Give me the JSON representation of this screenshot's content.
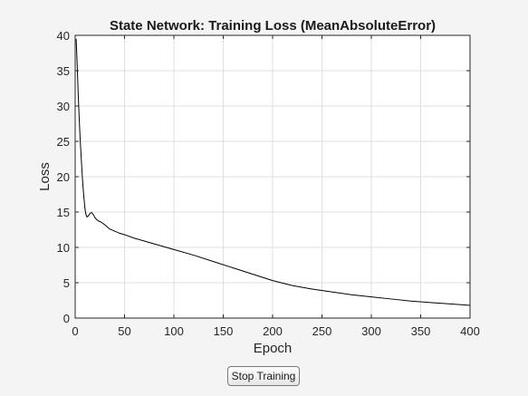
{
  "chart_data": {
    "type": "line",
    "title": "State Network: Training Loss (MeanAbsoluteError)",
    "xlabel": "Epoch",
    "ylabel": "Loss",
    "xlim": [
      0,
      400
    ],
    "ylim": [
      0,
      40
    ],
    "xticks": [
      0,
      50,
      100,
      150,
      200,
      250,
      300,
      350,
      400
    ],
    "yticks": [
      0,
      5,
      10,
      15,
      20,
      25,
      30,
      35,
      40
    ],
    "grid": true,
    "series": [
      {
        "color": "#000000",
        "x": [
          1,
          2,
          3,
          4,
          5,
          6,
          7,
          8,
          9,
          10,
          11,
          12,
          13,
          14,
          15,
          16,
          17,
          18,
          19,
          20,
          22,
          24,
          26,
          28,
          30,
          35,
          40,
          45,
          50,
          60,
          70,
          80,
          90,
          100,
          120,
          140,
          160,
          180,
          200,
          220,
          240,
          260,
          280,
          300,
          320,
          340,
          360,
          380,
          400
        ],
        "y": [
          39.5,
          36.0,
          32.0,
          28.5,
          25.5,
          23.0,
          20.5,
          18.5,
          16.8,
          15.4,
          14.6,
          14.3,
          14.4,
          14.6,
          14.8,
          14.9,
          14.9,
          14.7,
          14.5,
          14.2,
          13.9,
          13.7,
          13.6,
          13.4,
          13.2,
          12.6,
          12.3,
          12.0,
          11.8,
          11.3,
          10.9,
          10.5,
          10.1,
          9.7,
          8.9,
          8.0,
          7.1,
          6.2,
          5.3,
          4.6,
          4.1,
          3.7,
          3.3,
          3.0,
          2.7,
          2.4,
          2.2,
          2.0,
          1.8
        ]
      }
    ]
  },
  "controls": {
    "stop_label": "Stop Training"
  },
  "colors": {
    "background": "#f4f4f4",
    "axes_background": "#ffffff",
    "grid": "#dfdfdf",
    "line": "#000000"
  }
}
